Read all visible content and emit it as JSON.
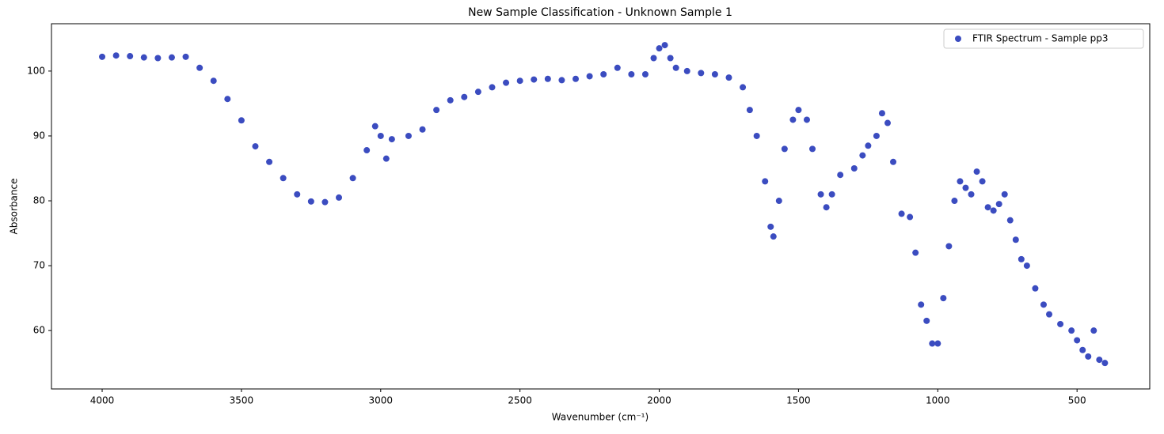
{
  "chart_data": {
    "type": "scatter",
    "title": "New Sample Classification - Unknown Sample 1",
    "x_label": "Wavenumber (cm⁻¹)",
    "y_label": "Absorbance",
    "series": [
      {
        "name": "FTIR Spectrum - Sample pp3",
        "color": "#3b4cc0",
        "x": [
          4000,
          3950,
          3900,
          3850,
          3800,
          3750,
          3700,
          3650,
          3600,
          3550,
          3500,
          3450,
          3400,
          3350,
          3300,
          3250,
          3200,
          3150,
          3100,
          3050,
          3020,
          3000,
          2980,
          2960,
          2900,
          2850,
          2800,
          2750,
          2700,
          2650,
          2600,
          2550,
          2500,
          2450,
          2400,
          2350,
          2300,
          2250,
          2200,
          2150,
          2100,
          2050,
          2020,
          2000,
          1980,
          1960,
          1940,
          1900,
          1850,
          1800,
          1750,
          1700,
          1675,
          1650,
          1620,
          1600,
          1590,
          1570,
          1550,
          1520,
          1500,
          1470,
          1450,
          1420,
          1400,
          1380,
          1350,
          1300,
          1270,
          1250,
          1220,
          1200,
          1180,
          1160,
          1130,
          1100,
          1080,
          1060,
          1040,
          1020,
          1000,
          980,
          960,
          940,
          920,
          900,
          880,
          860,
          840,
          820,
          800,
          780,
          760,
          740,
          720,
          700,
          680,
          650,
          620,
          600,
          560,
          520,
          500,
          480,
          460,
          440,
          420,
          400
        ],
        "values": [
          102.2,
          102.4,
          102.3,
          102.1,
          102.0,
          102.1,
          102.2,
          100.5,
          98.5,
          95.7,
          92.4,
          88.4,
          86,
          83.5,
          81,
          79.9,
          79.8,
          80.5,
          83.5,
          87.8,
          91.5,
          90,
          86.5,
          89.5,
          90,
          91,
          94,
          95.5,
          96,
          96.8,
          97.5,
          98.2,
          98.5,
          98.7,
          98.8,
          98.6,
          98.8,
          99.2,
          99.5,
          100.5,
          99.5,
          99.5,
          102,
          103.5,
          104,
          102,
          100.5,
          100,
          99.7,
          99.5,
          99,
          97.5,
          94,
          90,
          83,
          76,
          74.5,
          80,
          88,
          92.5,
          94,
          92.5,
          88,
          81,
          79,
          81,
          84,
          85,
          87,
          88.5,
          90,
          93.5,
          92,
          86,
          78,
          77.5,
          72,
          64,
          61.5,
          58,
          58,
          65,
          73,
          80,
          83,
          82,
          81,
          84.5,
          83,
          79,
          78.5,
          79.5,
          81,
          77,
          74,
          71,
          70,
          66.5,
          64,
          62.5,
          61,
          60,
          58.5,
          57,
          56,
          60,
          55.5,
          55
        ]
      }
    ],
    "xlim": [
      4182,
      239
    ],
    "ylim": [
      51.0,
      107.3
    ],
    "xticks": [
      4000,
      3500,
      3000,
      2500,
      2000,
      1500,
      1000,
      500
    ],
    "yticks": [
      60,
      70,
      80,
      90,
      100
    ],
    "legend": "upper right"
  }
}
